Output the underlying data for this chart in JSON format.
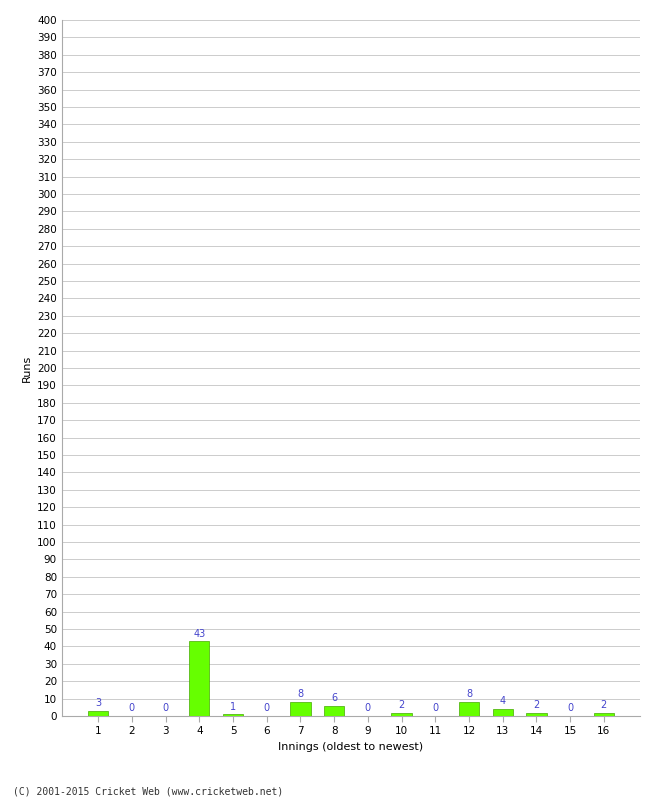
{
  "xlabel": "Innings (oldest to newest)",
  "ylabel": "Runs",
  "categories": [
    1,
    2,
    3,
    4,
    5,
    6,
    7,
    8,
    9,
    10,
    11,
    12,
    13,
    14,
    15,
    16
  ],
  "values": [
    3,
    0,
    0,
    43,
    1,
    0,
    8,
    6,
    0,
    2,
    0,
    8,
    4,
    2,
    0,
    2
  ],
  "bar_color": "#66ff00",
  "bar_edge_color": "#44aa00",
  "ylim": [
    0,
    400
  ],
  "yticks": [
    0,
    10,
    20,
    30,
    40,
    50,
    60,
    70,
    80,
    90,
    100,
    110,
    120,
    130,
    140,
    150,
    160,
    170,
    180,
    190,
    200,
    210,
    220,
    230,
    240,
    250,
    260,
    270,
    280,
    290,
    300,
    310,
    320,
    330,
    340,
    350,
    360,
    370,
    380,
    390,
    400
  ],
  "value_label_color": "#4444cc",
  "value_label_fontsize": 7,
  "axis_label_fontsize": 8,
  "tick_label_fontsize": 7.5,
  "grid_color": "#cccccc",
  "background_color": "#ffffff",
  "footer_text": "(C) 2001-2015 Cricket Web (www.cricketweb.net)"
}
